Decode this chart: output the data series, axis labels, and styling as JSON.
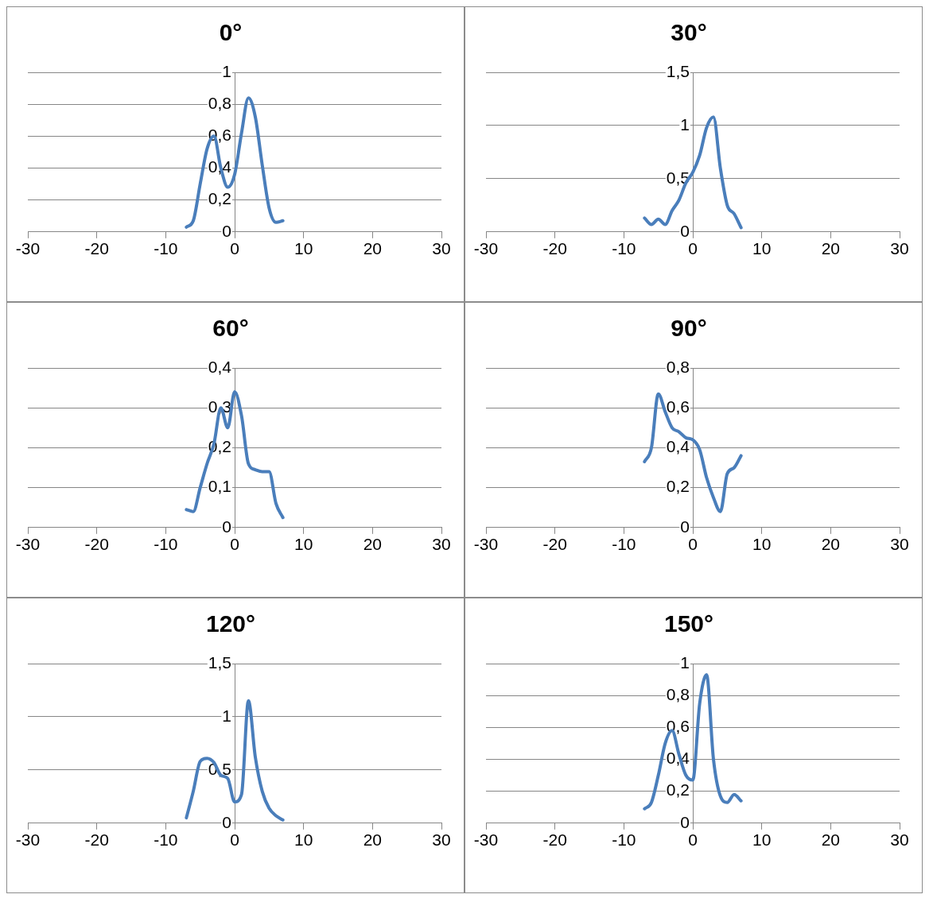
{
  "chart_data": [
    {
      "type": "line",
      "title": "0°",
      "x": [
        -7,
        -6,
        -5,
        -4,
        -3,
        -2,
        -1,
        0,
        1,
        2,
        3,
        4,
        5,
        6,
        7
      ],
      "color": "#4a7ebb",
      "values": [
        0.03,
        0.07,
        0.3,
        0.52,
        0.6,
        0.4,
        0.28,
        0.36,
        0.62,
        0.84,
        0.72,
        0.42,
        0.15,
        0.06,
        0.07
      ],
      "xlim": [
        -30,
        30
      ],
      "xticks": [
        -30,
        -20,
        -10,
        0,
        10,
        20,
        30
      ],
      "ylim": [
        0,
        1
      ],
      "yticks": [
        {
          "value": 0,
          "label": "0"
        },
        {
          "value": 0.2,
          "label": "0,2"
        },
        {
          "value": 0.4,
          "label": "0,4"
        },
        {
          "value": 0.6,
          "label": "0,6"
        },
        {
          "value": 0.8,
          "label": "0,8"
        },
        {
          "value": 1,
          "label": "1"
        }
      ],
      "grid": "y",
      "marker": "none"
    },
    {
      "type": "line",
      "title": "30°",
      "x": [
        -7,
        -6,
        -5,
        -4,
        -3,
        -2,
        -1,
        0,
        1,
        2,
        3,
        4,
        5,
        6,
        7
      ],
      "color": "#4a7ebb",
      "values": [
        0.13,
        0.07,
        0.12,
        0.07,
        0.2,
        0.3,
        0.46,
        0.56,
        0.72,
        0.98,
        1.08,
        0.6,
        0.25,
        0.17,
        0.04
      ],
      "xlim": [
        -30,
        30
      ],
      "xticks": [
        -30,
        -20,
        -10,
        0,
        10,
        20,
        30
      ],
      "ylim": [
        0,
        1.5
      ],
      "yticks": [
        {
          "value": 0,
          "label": "0"
        },
        {
          "value": 0.5,
          "label": "0,5"
        },
        {
          "value": 1,
          "label": "1"
        },
        {
          "value": 1.5,
          "label": "1,5"
        }
      ],
      "grid": "y",
      "marker": "none"
    },
    {
      "type": "line",
      "title": "60°",
      "x": [
        -7,
        -6,
        -5,
        -4,
        -3,
        -2,
        -1,
        0,
        1,
        2,
        3,
        4,
        5,
        6,
        7
      ],
      "color": "#4a7ebb",
      "values": [
        0.045,
        0.04,
        0.1,
        0.16,
        0.21,
        0.3,
        0.25,
        0.34,
        0.28,
        0.16,
        0.145,
        0.14,
        0.14,
        0.06,
        0.025
      ],
      "xlim": [
        -30,
        30
      ],
      "xticks": [
        -30,
        -20,
        -10,
        0,
        10,
        20,
        30
      ],
      "ylim": [
        0,
        0.4
      ],
      "yticks": [
        {
          "value": 0,
          "label": "0"
        },
        {
          "value": 0.1,
          "label": "0,1"
        },
        {
          "value": 0.2,
          "label": "0,2"
        },
        {
          "value": 0.3,
          "label": "0,3"
        },
        {
          "value": 0.4,
          "label": "0,4"
        }
      ],
      "grid": "y",
      "marker": "none"
    },
    {
      "type": "line",
      "title": "90°",
      "x": [
        -7,
        -6,
        -5,
        -4,
        -3,
        -2,
        -1,
        0,
        1,
        2,
        3,
        4,
        5,
        6,
        7
      ],
      "color": "#4a7ebb",
      "values": [
        0.33,
        0.4,
        0.67,
        0.58,
        0.5,
        0.48,
        0.45,
        0.44,
        0.39,
        0.25,
        0.15,
        0.08,
        0.27,
        0.3,
        0.36
      ],
      "xlim": [
        -30,
        30
      ],
      "xticks": [
        -30,
        -20,
        -10,
        0,
        10,
        20,
        30
      ],
      "ylim": [
        0,
        0.8
      ],
      "yticks": [
        {
          "value": 0,
          "label": "0"
        },
        {
          "value": 0.2,
          "label": "0,2"
        },
        {
          "value": 0.4,
          "label": "0,4"
        },
        {
          "value": 0.6,
          "label": "0,6"
        },
        {
          "value": 0.8,
          "label": "0,8"
        }
      ],
      "grid": "y",
      "marker": "none"
    },
    {
      "type": "line",
      "title": "120°",
      "x": [
        -7,
        -6,
        -5,
        -4,
        -3,
        -2,
        -1,
        0,
        1,
        2,
        3,
        4,
        5,
        6,
        7
      ],
      "color": "#4a7ebb",
      "values": [
        0.05,
        0.3,
        0.58,
        0.61,
        0.57,
        0.45,
        0.42,
        0.2,
        0.27,
        1.15,
        0.62,
        0.3,
        0.14,
        0.07,
        0.03
      ],
      "xlim": [
        -30,
        30
      ],
      "xticks": [
        -30,
        -20,
        -10,
        0,
        10,
        20,
        30
      ],
      "ylim": [
        0,
        1.5
      ],
      "yticks": [
        {
          "value": 0,
          "label": "0"
        },
        {
          "value": 0.5,
          "label": "0,5"
        },
        {
          "value": 1,
          "label": "1"
        },
        {
          "value": 1.5,
          "label": "1,5"
        }
      ],
      "grid": "y",
      "marker": "none"
    },
    {
      "type": "line",
      "title": "150°",
      "x": [
        -7,
        -6,
        -5,
        -4,
        -3,
        -2,
        -1,
        0,
        1,
        2,
        3,
        4,
        5,
        6,
        7
      ],
      "color": "#4a7ebb",
      "values": [
        0.09,
        0.13,
        0.3,
        0.5,
        0.58,
        0.43,
        0.3,
        0.27,
        0.75,
        0.93,
        0.4,
        0.17,
        0.13,
        0.18,
        0.14
      ],
      "xlim": [
        -30,
        30
      ],
      "xticks": [
        -30,
        -20,
        -10,
        0,
        10,
        20,
        30
      ],
      "ylim": [
        0,
        1
      ],
      "yticks": [
        {
          "value": 0,
          "label": "0"
        },
        {
          "value": 0.2,
          "label": "0,2"
        },
        {
          "value": 0.4,
          "label": "0,4"
        },
        {
          "value": 0.6,
          "label": "0,6"
        },
        {
          "value": 0.8,
          "label": "0,8"
        },
        {
          "value": 1,
          "label": "1"
        }
      ],
      "grid": "y",
      "marker": "none"
    }
  ]
}
